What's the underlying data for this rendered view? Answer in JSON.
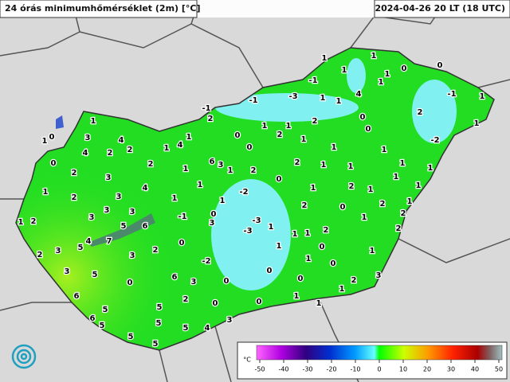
{
  "header": {
    "title": "24 órás minimumhőmérséklet (2m) [°C]",
    "timestamp": "2024-04-26 20 LT (18 UTC)"
  },
  "stations": [
    1,
    1,
    1,
    1,
    0,
    0,
    -1,
    1,
    4,
    1,
    1,
    -3,
    -1,
    -1,
    1,
    -1,
    2,
    2,
    0,
    1,
    1,
    1,
    2,
    0,
    1,
    0,
    1,
    3,
    4,
    2,
    0,
    2,
    1,
    -2,
    1,
    4,
    1,
    0,
    1,
    1,
    4,
    2,
    0,
    2,
    6,
    3,
    1,
    2,
    2,
    1,
    1,
    1,
    1,
    2,
    1,
    3,
    0,
    1,
    1,
    4,
    1,
    -2,
    1,
    2,
    1,
    1,
    2,
    3,
    1,
    1,
    1,
    3,
    3,
    3,
    2,
    0,
    2,
    2,
    -1,
    0,
    3,
    -3,
    1,
    2,
    1,
    6,
    5,
    1,
    -3,
    2,
    2,
    4,
    7,
    5,
    0,
    1,
    1,
    3,
    1,
    0,
    1,
    2,
    3,
    2,
    -2,
    1,
    0,
    3,
    5,
    6,
    0,
    2,
    3,
    0,
    3,
    0,
    0,
    1,
    6,
    5,
    2,
    0,
    0,
    1,
    1,
    5,
    6,
    5,
    5,
    4,
    5,
    3,
    5,
    5
  ],
  "legend": {
    "unit": "°C",
    "ticks": [
      -50,
      -40,
      -30,
      -20,
      -10,
      0,
      10,
      20,
      30,
      40,
      50
    ]
  }
}
